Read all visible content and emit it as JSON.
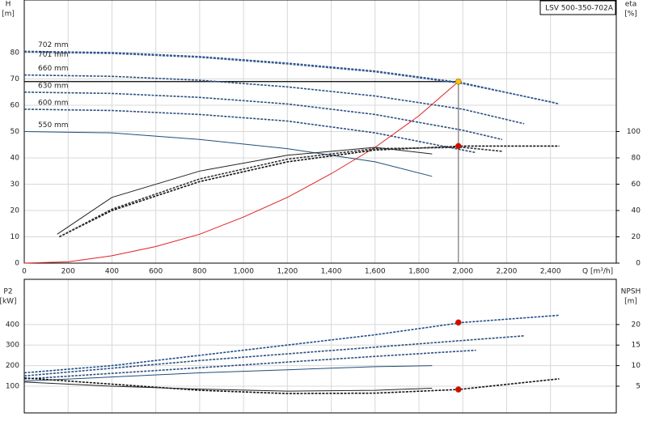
{
  "chart_data": [
    {
      "type": "line",
      "title": "LSV 500-350-702A",
      "xlabel": "Q [m³/h]",
      "ylabel": [
        "H",
        "[m]"
      ],
      "y2label": [
        "eta",
        "[%]"
      ],
      "xlim": [
        0,
        2700
      ],
      "ylim": [
        0,
        100
      ],
      "y2lim": [
        0,
        200
      ],
      "grid": true,
      "xticks": [
        0,
        200,
        400,
        600,
        800,
        {
          "value": 1000,
          "label": "1,000"
        },
        {
          "value": 1200,
          "label": "1,200"
        },
        {
          "value": 1400,
          "label": "1,400"
        },
        {
          "value": 1600,
          "label": "1,600"
        },
        {
          "value": 1800,
          "label": "1,800"
        },
        {
          "value": 2000,
          "label": "2,000"
        },
        {
          "value": 2200,
          "label": "2,200"
        },
        {
          "value": 2400,
          "label": "2,400"
        }
      ],
      "yticks": [
        0,
        10,
        20,
        30,
        40,
        50,
        60,
        70,
        80
      ],
      "y2ticks": [
        0,
        20,
        40,
        60,
        80,
        100
      ],
      "series": [
        {
          "name": "702 mm",
          "color": "#1f4e8c",
          "dashed": true,
          "x": [
            0,
            400,
            800,
            1200,
            1600,
            2000,
            2440
          ],
          "values": [
            80.5,
            80,
            78.5,
            76,
            73,
            68.5,
            60.5
          ]
        },
        {
          "name": "701 mm",
          "color": "#3a5f95",
          "dashed": true,
          "x": [
            0,
            400,
            800,
            1200,
            1600,
            2000,
            2420
          ],
          "values": [
            80.2,
            79.7,
            78.2,
            75.7,
            72.7,
            68.2,
            61
          ]
        },
        {
          "name": "660 mm",
          "color": "#2b4f80",
          "dashed": true,
          "x": [
            0,
            400,
            800,
            1200,
            1600,
            2000,
            2280
          ],
          "values": [
            71.5,
            71,
            69.5,
            67,
            63.5,
            58.5,
            53
          ]
        },
        {
          "name": "630 mm",
          "color": "#2b4f80",
          "dashed": true,
          "x": [
            0,
            400,
            800,
            1200,
            1600,
            2000,
            2180
          ],
          "values": [
            65,
            64.5,
            63,
            60.5,
            56.5,
            50.5,
            47
          ]
        },
        {
          "name": "600 mm",
          "color": "#2b4f80",
          "dashed": true,
          "x": [
            0,
            400,
            800,
            1200,
            1600,
            2060
          ],
          "values": [
            58.5,
            58,
            56.5,
            54,
            49.5,
            42
          ]
        },
        {
          "name": "550 mm",
          "color": "#1f4e7a",
          "dashed": false,
          "x": [
            0,
            400,
            800,
            1200,
            1600,
            1860
          ],
          "values": [
            50,
            49.5,
            47,
            43.5,
            38.5,
            33
          ]
        },
        {
          "color": "#e02020",
          "dashed": false,
          "x": [
            0,
            200,
            400,
            600,
            800,
            1000,
            1200,
            1400,
            1600,
            1800,
            1980
          ],
          "values": [
            0,
            0.5,
            2.8,
            6.3,
            11,
            17.5,
            25,
            34,
            44,
            56,
            69
          ]
        },
        {
          "color": "#111111",
          "dashed": true,
          "axis": "y2",
          "x": [
            160,
            400,
            800,
            1200,
            1600,
            2000,
            2440
          ],
          "values": [
            20,
            40,
            62,
            77,
            86,
            89,
            89
          ]
        },
        {
          "color": "#333333",
          "dashed": true,
          "axis": "y2",
          "x": [
            160,
            400,
            800,
            1200,
            1600,
            2000,
            2180
          ],
          "values": [
            20,
            41,
            64,
            79,
            87,
            88,
            85
          ]
        },
        {
          "color": "#222222",
          "dashed": false,
          "axis": "y2",
          "x": [
            150,
            400,
            800,
            1200,
            1600,
            1860
          ],
          "values": [
            22,
            50,
            70,
            82,
            88,
            83
          ]
        }
      ],
      "points": [
        {
          "x": 1980,
          "y": 69,
          "color": "#f5c400",
          "guide": true
        },
        {
          "x": 1980,
          "y": 89,
          "color": "#e00000",
          "axis": "y2"
        }
      ]
    },
    {
      "type": "line",
      "ylabel": [
        "P2",
        "[kW]"
      ],
      "y2label": [
        "NPSH",
        "[m]"
      ],
      "xlim": [
        0,
        2700
      ],
      "ylim": [
        -30,
        620
      ],
      "y2lim": [
        -1.5,
        31
      ],
      "grid": true,
      "xticks": [
        0,
        200,
        400,
        600,
        800,
        1000,
        1200,
        1400,
        1600,
        1800,
        2000,
        2200,
        2400
      ],
      "yticks": [
        100,
        200,
        300,
        400
      ],
      "y2ticks": [
        5,
        10,
        15,
        20
      ],
      "series": [
        {
          "color": "#1f4e8c",
          "dashed": true,
          "x": [
            0,
            400,
            800,
            1200,
            1600,
            2000,
            2440
          ],
          "values": [
            165,
            200,
            250,
            300,
            350,
            410,
            445
          ]
        },
        {
          "color": "#2b4f80",
          "dashed": true,
          "x": [
            0,
            800,
            1600,
            2280
          ],
          "values": [
            150,
            225,
            290,
            345
          ]
        },
        {
          "color": "#2b4f80",
          "dashed": true,
          "x": [
            0,
            800,
            1600,
            2060
          ],
          "values": [
            135,
            190,
            245,
            275
          ]
        },
        {
          "color": "#1f4e7a",
          "dashed": false,
          "x": [
            0,
            400,
            800,
            1200,
            1600,
            1860
          ],
          "values": [
            125,
            145,
            165,
            180,
            195,
            200
          ]
        },
        {
          "color": "#111111",
          "dashed": true,
          "axis": "y2",
          "x": [
            0,
            400,
            800,
            1200,
            1600,
            1980,
            2440
          ],
          "values": [
            7,
            5.5,
            4,
            3.2,
            3.3,
            4.2,
            6.8
          ]
        },
        {
          "color": "#222222",
          "dashed": false,
          "axis": "y2",
          "x": [
            0,
            400,
            800,
            1200,
            1600,
            1860
          ],
          "values": [
            6,
            5,
            4.3,
            3.8,
            4,
            4.5
          ]
        }
      ],
      "points": [
        {
          "x": 1980,
          "y": 410,
          "color": "#e00000"
        },
        {
          "x": 1980,
          "y": 4.2,
          "color": "#e00000",
          "axis": "y2"
        }
      ]
    }
  ]
}
